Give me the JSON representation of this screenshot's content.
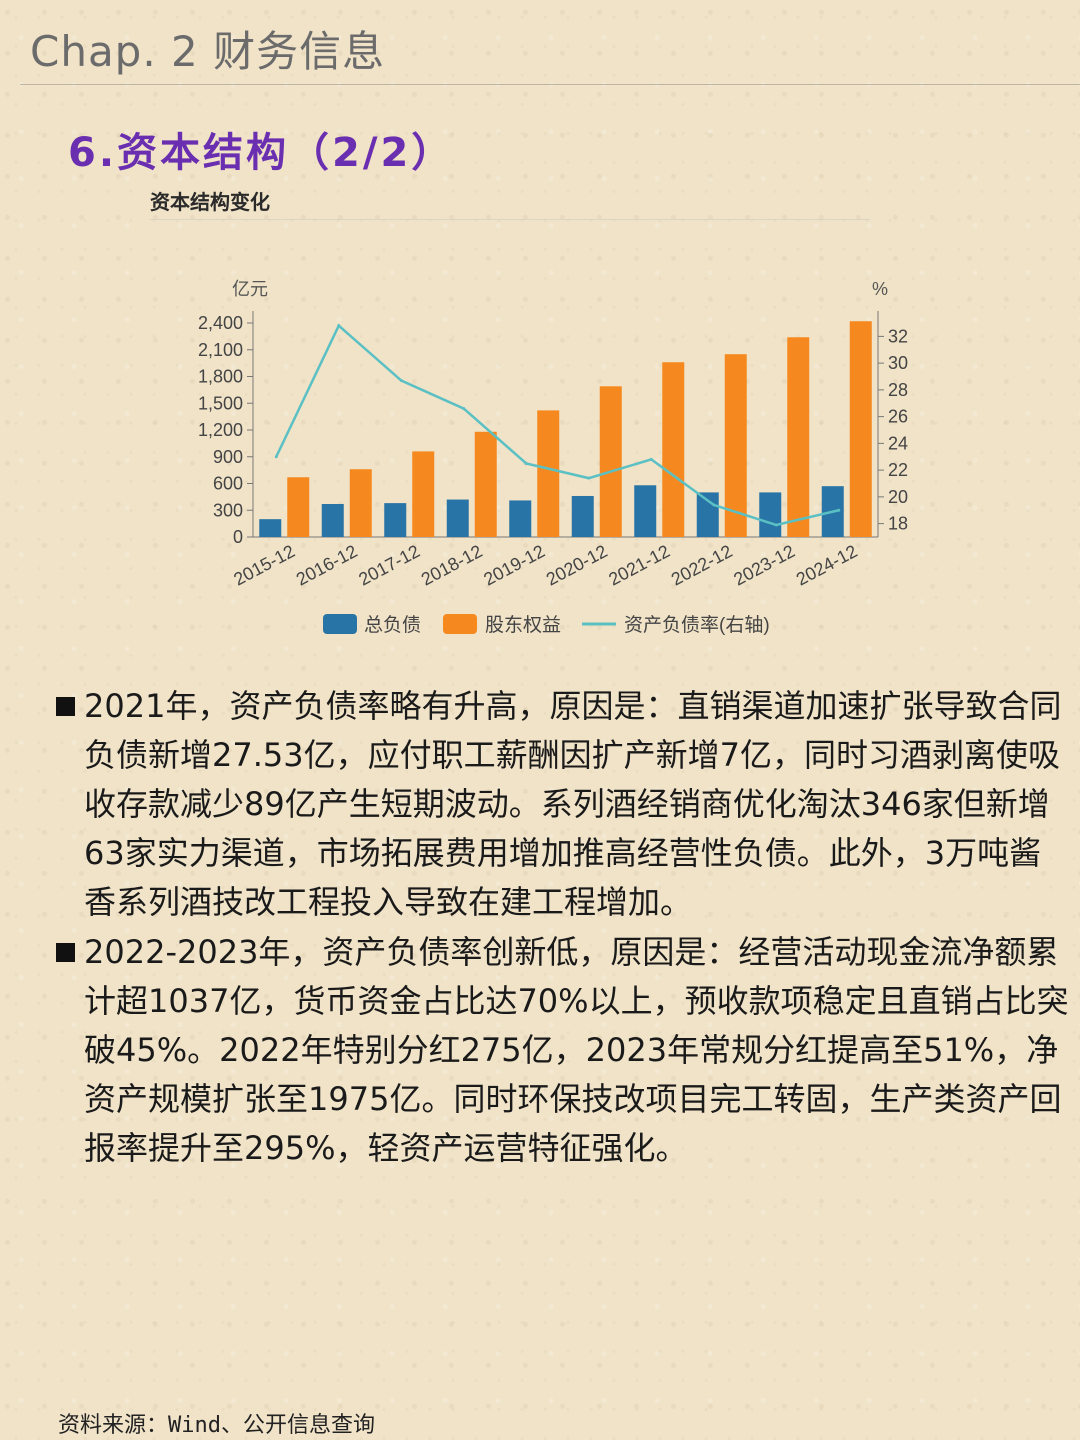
{
  "header": {
    "title": "Chap. 2 财务信息"
  },
  "section": {
    "title": "6.资本结构（2/2）"
  },
  "chart_data": {
    "type": "bar",
    "title": "资本结构变化",
    "ylabel": "亿元",
    "y2label": "%",
    "categories": [
      "2015-12",
      "2016-12",
      "2017-12",
      "2018-12",
      "2019-12",
      "2020-12",
      "2021-12",
      "2022-12",
      "2023-12",
      "2024-12"
    ],
    "ylim": [
      0,
      2400
    ],
    "yticks": [
      0,
      300,
      600,
      900,
      1200,
      1500,
      1800,
      2100,
      2400
    ],
    "ytick_labels": [
      "0",
      "300",
      "600",
      "900",
      "1,200",
      "1,500",
      "1,800",
      "2,100",
      "2,400"
    ],
    "y2lim": [
      17,
      33
    ],
    "y2ticks": [
      18,
      20,
      22,
      24,
      26,
      28,
      30,
      32
    ],
    "series": [
      {
        "name": "总负债",
        "type": "bar",
        "axis": "left",
        "color": "#2874a6",
        "values": [
          200,
          370,
          380,
          420,
          410,
          460,
          580,
          500,
          500,
          570
        ]
      },
      {
        "name": "股东权益",
        "type": "bar",
        "axis": "left",
        "color": "#f5891f",
        "values": [
          670,
          760,
          960,
          1180,
          1420,
          1690,
          1960,
          2050,
          2240,
          2420
        ]
      },
      {
        "name": "资产负债率(右轴)",
        "type": "line",
        "axis": "right",
        "color": "#5bc0c4",
        "values": [
          23.0,
          32.8,
          28.7,
          26.6,
          22.5,
          21.4,
          22.8,
          19.4,
          17.9,
          19.0
        ]
      }
    ],
    "legend_position": "bottom",
    "grid": false
  },
  "paragraphs": [
    "2021年，资产负债率略有升高，原因是：直销渠道加速扩张导致合同负债新增27.53亿，应付职工薪酬因扩产新增7亿，同时习酒剥离使吸收存款减少89亿产生短期波动。系列酒经销商优化淘汰346家但新增63家实力渠道，市场拓展费用增加推高经营性负债。此外，3万吨酱香系列酒技改工程投入导致在建工程增加。",
    "2022-2023年，资产负债率创新低，原因是：经营活动现金流净额累计超1037亿，货币资金占比达70%以上，预收款项稳定且直销占比突破45%。2022年特别分红275亿，2023年常规分红提高至51%，净资产规模扩张至1975亿。同时环保技改项目完工转固，生产类资产回报率提升至295%，轻资产运营特征强化。"
  ],
  "footer": {
    "source": "资料来源：Wind、公开信息查询"
  }
}
